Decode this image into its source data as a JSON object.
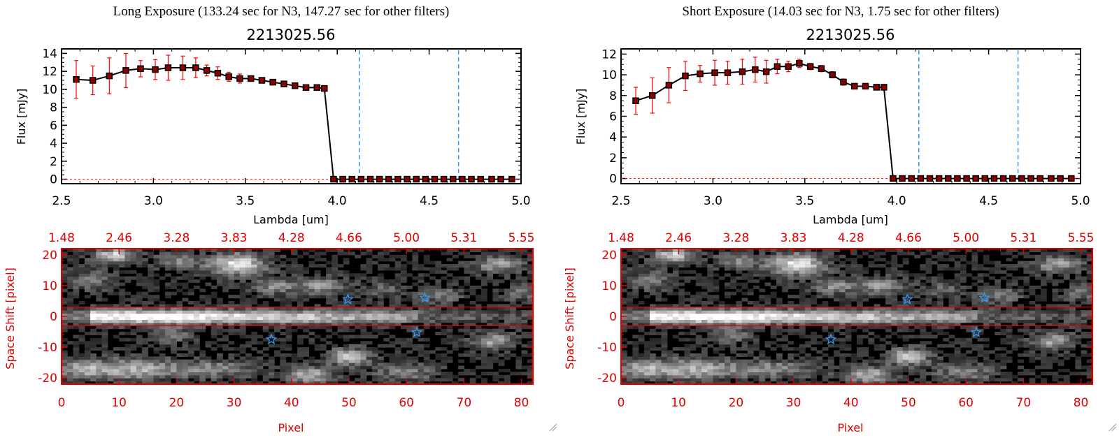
{
  "panels": [
    {
      "header": "Long Exposure (133.24 sec for N3, 147.27 sec for other filters)",
      "spectrum": {
        "title": "2213025.56",
        "ylabel": "Flux [mJy]",
        "xlabel": "Lambda [um]",
        "xlim": [
          2.5,
          5.0
        ],
        "ylim": [
          -0.5,
          14.5
        ],
        "x_ticks": [
          "2.5",
          "3.0",
          "3.5",
          "4.0",
          "4.5",
          "5.0"
        ],
        "y_ticks": [
          "0",
          "2",
          "4",
          "6",
          "8",
          "10",
          "12",
          "14"
        ]
      },
      "image": {
        "top_ticks": [
          "1.48",
          "2.46",
          "3.28",
          "3.83",
          "4.28",
          "4.66",
          "5.00",
          "5.31",
          "5.55"
        ],
        "bottom_ticks": [
          "0",
          "10",
          "20",
          "30",
          "40",
          "50",
          "60",
          "70",
          "80"
        ],
        "left_ticks": [
          "20",
          "10",
          "0",
          "-10",
          "-20"
        ],
        "ylabel": "Space Shift [pixel]",
        "xlabel": "Pixel"
      }
    },
    {
      "header": "Short Exposure (14.03 sec for N3, 1.75 sec for other filters)",
      "spectrum": {
        "title": "2213025.56",
        "ylabel": "Flux [mJy]",
        "xlabel": "Lambda [um]",
        "xlim": [
          2.5,
          5.0
        ],
        "ylim": [
          -0.5,
          12.5
        ],
        "x_ticks": [
          "2.5",
          "3.0",
          "3.5",
          "4.0",
          "4.5",
          "5.0"
        ],
        "y_ticks": [
          "0",
          "2",
          "4",
          "6",
          "8",
          "10",
          "12"
        ]
      },
      "image": {
        "top_ticks": [
          "1.48",
          "2.46",
          "3.28",
          "3.83",
          "4.28",
          "4.66",
          "5.00",
          "5.31",
          "5.55"
        ],
        "bottom_ticks": [
          "0",
          "10",
          "20",
          "30",
          "40",
          "50",
          "60",
          "70",
          "80"
        ],
        "left_ticks": [
          "20",
          "10",
          "0",
          "-10",
          "-20"
        ],
        "ylabel": "Space Shift [pixel]",
        "xlabel": "Pixel"
      }
    }
  ],
  "chart_data": [
    {
      "type": "line",
      "title": "2213025.56",
      "xlabel": "Lambda [um]",
      "ylabel": "Flux [mJy]",
      "xlim": [
        2.5,
        5.0
      ],
      "ylim": [
        -0.5,
        14.5
      ],
      "grid": false,
      "line_color": "#000000",
      "marker_color": "#8b0000",
      "errorbar_color": "#ff0000",
      "vline_color": "#3399ff",
      "vlines": [
        4.12,
        4.66
      ],
      "series": [
        {
          "x": [
            2.58,
            2.67,
            2.76,
            2.85,
            2.93,
            3.01,
            3.08,
            3.16,
            3.23,
            3.29,
            3.35,
            3.41,
            3.47,
            3.53,
            3.59,
            3.65,
            3.71,
            3.77,
            3.83,
            3.89,
            3.93,
            3.98,
            4.03,
            4.08,
            4.13,
            4.18,
            4.23,
            4.28,
            4.33,
            4.38,
            4.43,
            4.48,
            4.53,
            4.58,
            4.63,
            4.68,
            4.73,
            4.78,
            4.84,
            4.89,
            4.95
          ],
          "y": [
            11.1,
            11.0,
            11.5,
            12.1,
            12.3,
            12.2,
            12.4,
            12.4,
            12.4,
            12.1,
            11.8,
            11.4,
            11.2,
            11.2,
            11.0,
            10.8,
            10.6,
            10.4,
            10.2,
            10.2,
            10.1,
            0,
            0,
            0,
            0,
            0,
            0,
            0,
            0,
            0,
            0,
            0,
            0,
            0,
            0,
            0,
            0,
            0,
            0,
            0,
            0
          ],
          "err": [
            2.1,
            1.6,
            2.0,
            1.9,
            0.9,
            1.1,
            1.4,
            1.3,
            1.1,
            0.6,
            0.7,
            0.5,
            0.5,
            0.3,
            0.3,
            0.3,
            0.3,
            0.2,
            0.2,
            0.2,
            0.2,
            0,
            0,
            0,
            0,
            0,
            0,
            0,
            0,
            0,
            0,
            0,
            0,
            0,
            0,
            0,
            0,
            0,
            0,
            0,
            0
          ]
        }
      ]
    },
    {
      "type": "line",
      "title": "2213025.56",
      "xlabel": "Lambda [um]",
      "ylabel": "Flux [mJy]",
      "xlim": [
        2.5,
        5.0
      ],
      "ylim": [
        -0.5,
        12.5
      ],
      "grid": false,
      "line_color": "#000000",
      "marker_color": "#8b0000",
      "errorbar_color": "#ff0000",
      "vline_color": "#3399ff",
      "vlines": [
        4.12,
        4.66
      ],
      "series": [
        {
          "x": [
            2.58,
            2.67,
            2.76,
            2.85,
            2.93,
            3.01,
            3.08,
            3.16,
            3.23,
            3.29,
            3.35,
            3.41,
            3.47,
            3.53,
            3.59,
            3.65,
            3.71,
            3.77,
            3.83,
            3.89,
            3.93,
            3.98,
            4.03,
            4.08,
            4.13,
            4.18,
            4.23,
            4.28,
            4.33,
            4.38,
            4.43,
            4.48,
            4.53,
            4.58,
            4.63,
            4.68,
            4.73,
            4.78,
            4.84,
            4.89,
            4.95
          ],
          "y": [
            7.5,
            8.0,
            9.0,
            9.9,
            10.1,
            10.2,
            10.2,
            10.3,
            10.5,
            10.3,
            10.8,
            10.8,
            11.1,
            10.8,
            10.6,
            10.0,
            9.3,
            8.9,
            8.9,
            8.8,
            8.8,
            0,
            0,
            0,
            0,
            0,
            0,
            0,
            0,
            0,
            0,
            0,
            0,
            0,
            0,
            0,
            0,
            0,
            0,
            0,
            0
          ],
          "err": [
            1.3,
            1.7,
            1.7,
            1.4,
            0.8,
            1.2,
            1.1,
            1.2,
            1.2,
            1.1,
            0.7,
            0.5,
            0.4,
            0.3,
            0.3,
            0.3,
            0.3,
            0.2,
            0.2,
            0.2,
            0.2,
            0,
            0,
            0,
            0,
            0,
            0,
            0,
            0,
            0,
            0,
            0,
            0,
            0,
            0,
            0,
            0,
            0,
            0,
            0,
            0
          ]
        }
      ]
    },
    {
      "type": "heatmap",
      "xlabel": "Pixel",
      "ylabel": "Space Shift [pixel]",
      "xlim": [
        0,
        82
      ],
      "ylim": [
        -22,
        22
      ],
      "extraction_rows": [
        -3,
        3
      ],
      "frame_color": "#e00000",
      "star_color": "#3399ff",
      "stars": [
        {
          "x": 49.8,
          "y": 5.5
        },
        {
          "x": 63.2,
          "y": 6.0
        },
        {
          "x": 36.5,
          "y": -7.5
        },
        {
          "x": 61.8,
          "y": -5.2
        }
      ]
    },
    {
      "type": "heatmap",
      "xlabel": "Pixel",
      "ylabel": "Space Shift [pixel]",
      "xlim": [
        0,
        82
      ],
      "ylim": [
        -22,
        22
      ],
      "extraction_rows": [
        -3,
        3
      ],
      "frame_color": "#e00000",
      "star_color": "#3399ff",
      "stars": [
        {
          "x": 49.8,
          "y": 5.5
        },
        {
          "x": 63.2,
          "y": 6.0
        },
        {
          "x": 36.5,
          "y": -7.5
        },
        {
          "x": 61.8,
          "y": -5.2
        }
      ]
    }
  ]
}
